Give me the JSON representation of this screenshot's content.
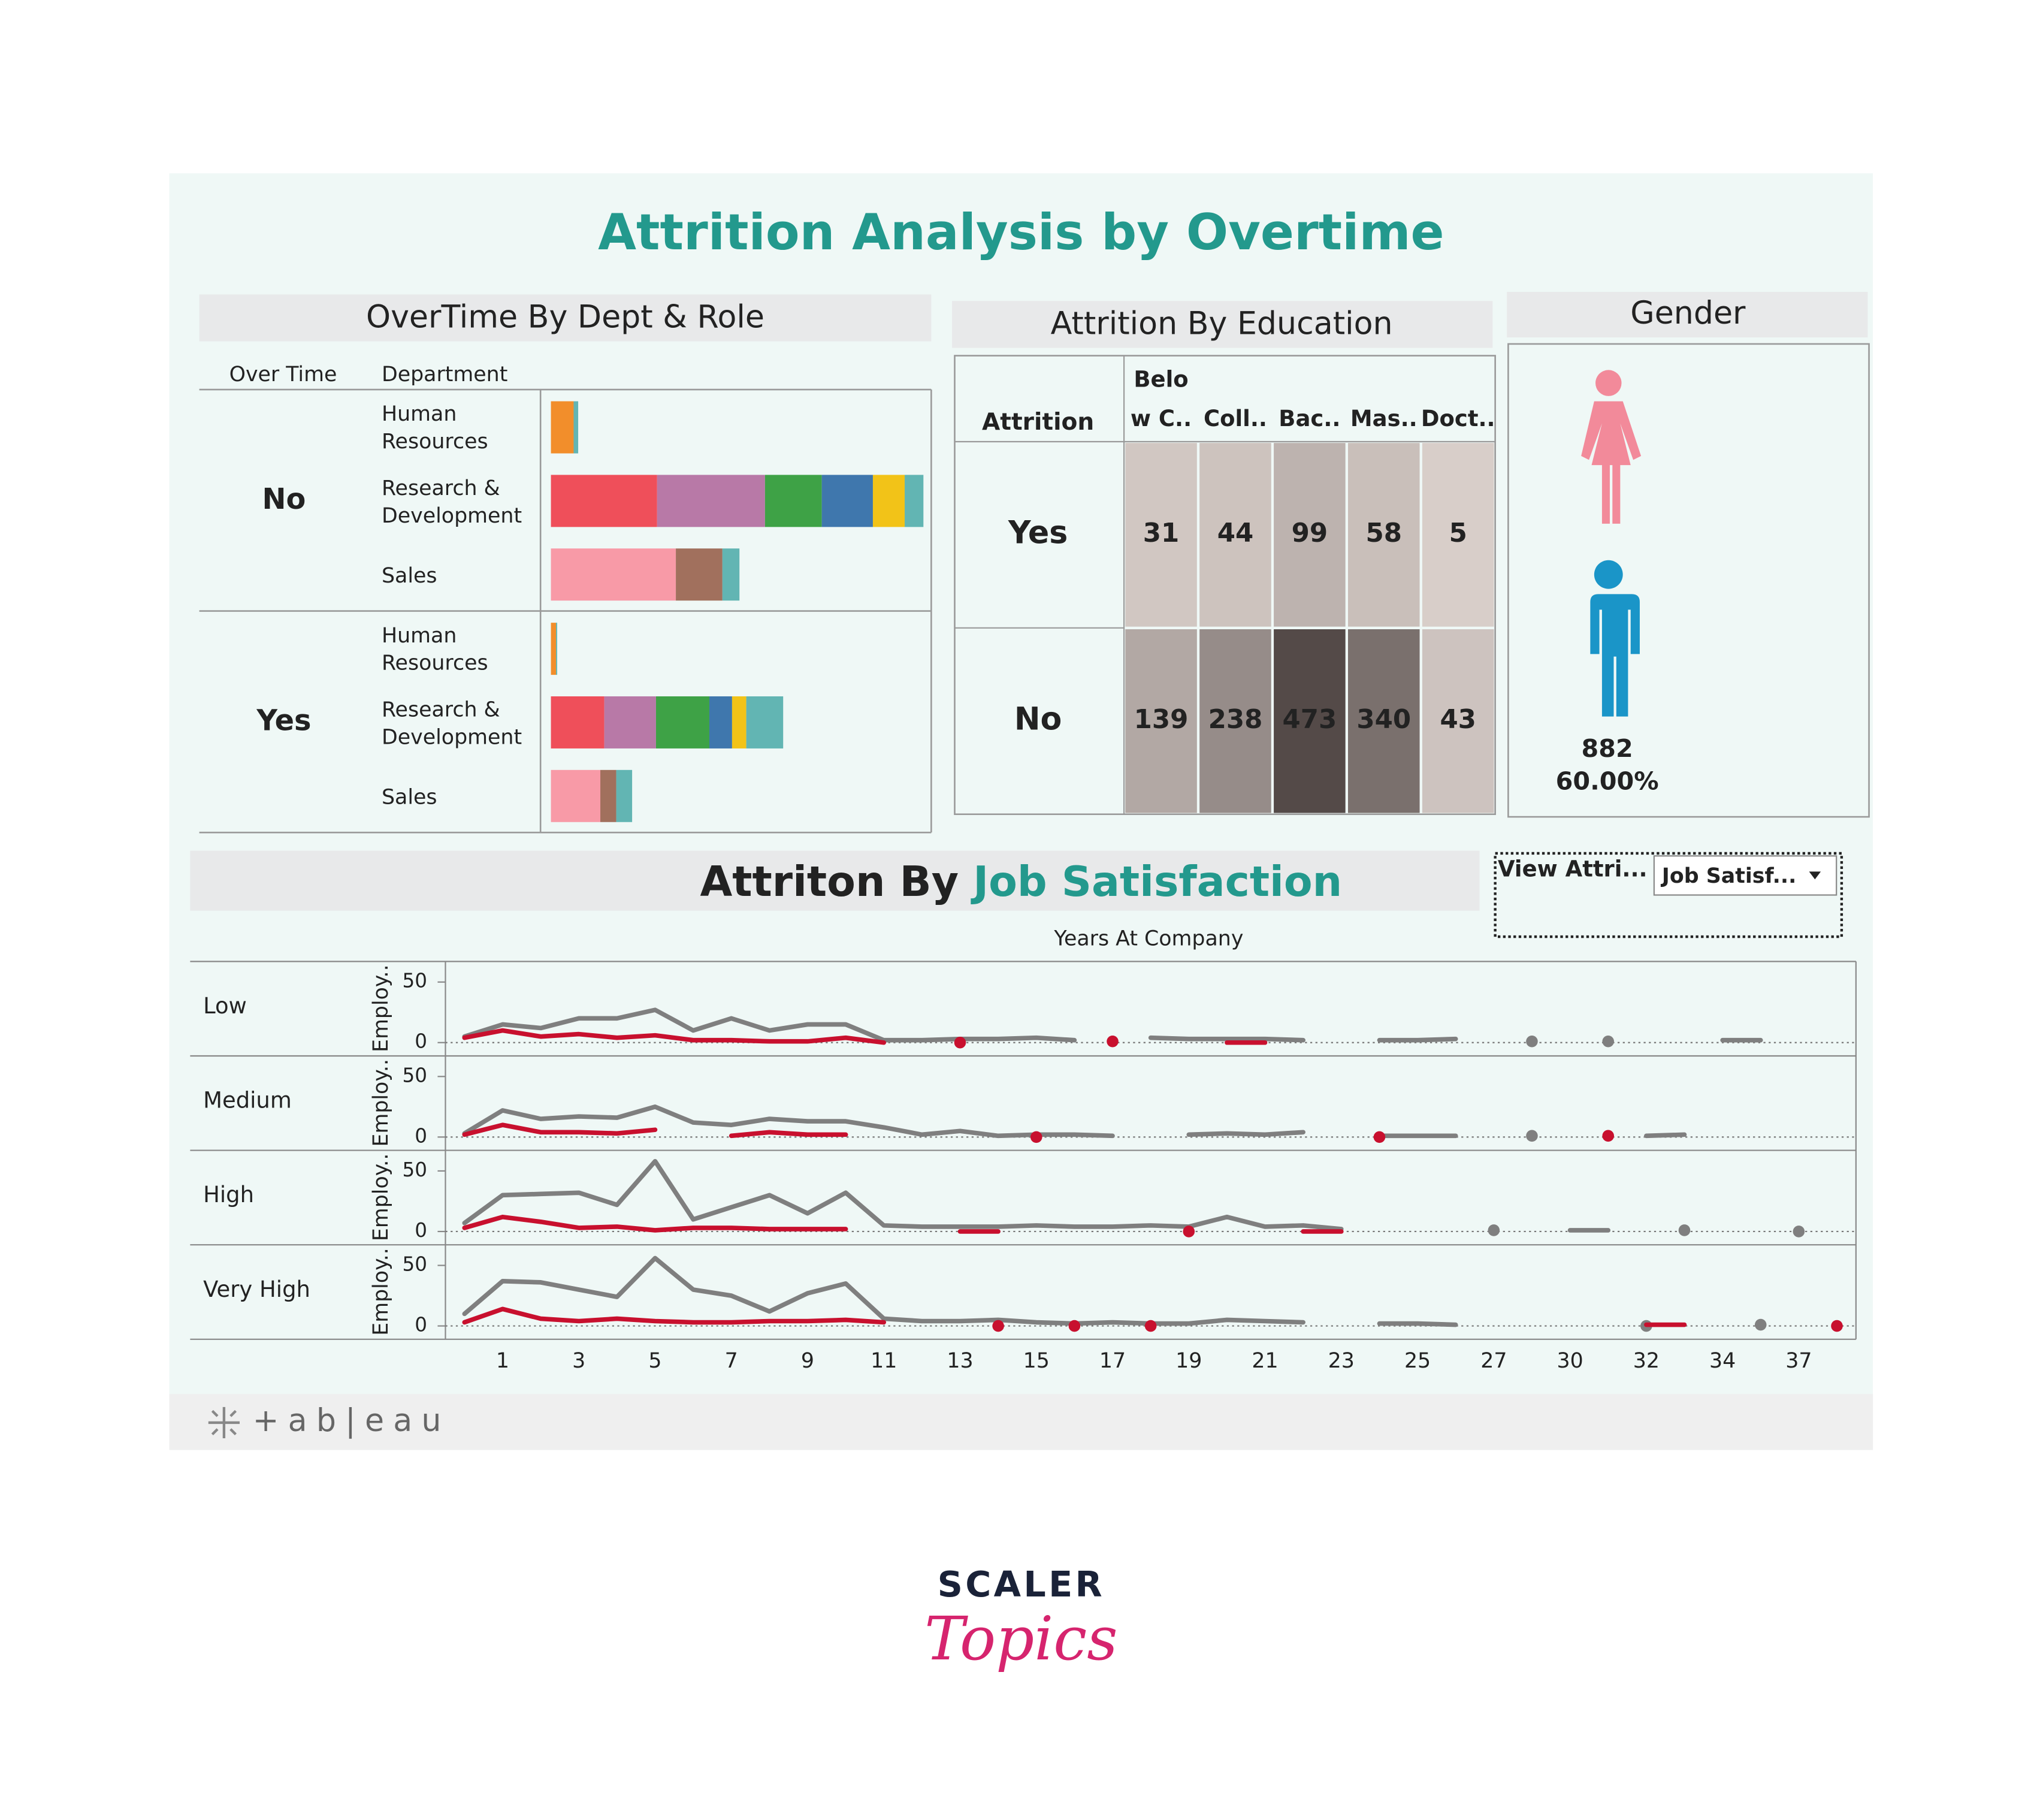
{
  "title": "Attrition Analysis by Overtime",
  "chart_data": [
    {
      "type": "bar",
      "title": "OverTime By Dept & Role",
      "row_headers": [
        "Over Time",
        "Department"
      ],
      "groups": [
        "No",
        "Yes"
      ],
      "categories": [
        "Human Resources",
        "Research & Development",
        "Sales",
        "Human Resources",
        "Research & Development",
        "Sales"
      ],
      "series": [
        {
          "color": "#f28e2b",
          "values": [
            40,
            null,
            null,
            9,
            null,
            null
          ]
        },
        {
          "color": "#ef4f5a",
          "values": [
            null,
            187,
            null,
            null,
            94,
            null
          ]
        },
        {
          "color": "#b879a7",
          "values": [
            null,
            190,
            null,
            null,
            91,
            null
          ]
        },
        {
          "color": "#3ea246",
          "values": [
            null,
            100,
            null,
            null,
            94,
            null
          ]
        },
        {
          "color": "#3f77ad",
          "values": [
            null,
            90,
            null,
            null,
            40,
            null
          ]
        },
        {
          "color": "#f2c318",
          "values": [
            null,
            56,
            null,
            null,
            25,
            null
          ]
        },
        {
          "color": "#f89aa7",
          "values": [
            null,
            null,
            220,
            null,
            null,
            87
          ]
        },
        {
          "color": "#a1705d",
          "values": [
            null,
            null,
            82,
            null,
            null,
            28
          ]
        },
        {
          "color": "#62b5b3",
          "values": [
            8,
            33,
            30,
            2,
            65,
            28
          ]
        }
      ]
    },
    {
      "type": "heatmap",
      "title": "Attrition By Education",
      "row_header": "Attrition",
      "rows": [
        "Yes",
        "No"
      ],
      "columns": [
        "Belo w C..",
        "Coll..",
        "Bac..",
        "Mas..",
        "Doct.."
      ],
      "values": [
        [
          31,
          44,
          99,
          58,
          5
        ],
        [
          139,
          238,
          473,
          340,
          43
        ]
      ],
      "colors": [
        "#d8cec9",
        "#544a48"
      ]
    },
    {
      "type": "pictograph",
      "title": "Gender",
      "counts": [
        882
      ],
      "values": [
        60
      ],
      "value_labels": [
        "60.00%"
      ]
    },
    {
      "type": "line",
      "title": "Attriton By",
      "title_highlight": "Job Satisfaction",
      "x_label": "Years At Company",
      "y_label": "Employ..",
      "categories": [
        null,
        1,
        null,
        3,
        null,
        5,
        null,
        7,
        null,
        9,
        null,
        11,
        null,
        13,
        null,
        15,
        null,
        17,
        null,
        19,
        null,
        21,
        null,
        23,
        null,
        25,
        null,
        27,
        null,
        30,
        null,
        32,
        null,
        34,
        null,
        37,
        null
      ],
      "ylim": [
        -11,
        67
      ],
      "yticks": [
        0,
        50
      ],
      "facets": [
        {
          "name": "Low",
          "series": [
            {
              "color": "#7f7f7f",
              "values": [
                5,
                15,
                12,
                20,
                20,
                27,
                10,
                20,
                10,
                15,
                15,
                2,
                2,
                3,
                3,
                4,
                2,
                null,
                4,
                3,
                3,
                3,
                2,
                null,
                2,
                2,
                3,
                null,
                1,
                null,
                1,
                null,
                null,
                2,
                2,
                null,
                null
              ]
            },
            {
              "color": "#c8102e",
              "values": [
                4,
                10,
                5,
                7,
                4,
                6,
                2,
                2,
                1,
                1,
                4,
                0,
                null,
                0,
                null,
                null,
                null,
                1,
                null,
                null,
                0,
                0,
                null,
                null,
                null,
                null,
                null,
                null,
                null,
                null,
                null,
                null,
                null,
                null,
                null,
                null,
                null
              ]
            }
          ]
        },
        {
          "name": "Medium",
          "series": [
            {
              "color": "#7f7f7f",
              "values": [
                3,
                22,
                15,
                17,
                16,
                25,
                12,
                10,
                15,
                13,
                13,
                8,
                2,
                5,
                1,
                2,
                2,
                1,
                null,
                2,
                3,
                2,
                4,
                null,
                1,
                1,
                1,
                null,
                1,
                null,
                null,
                1,
                2,
                null,
                null,
                null,
                null
              ]
            },
            {
              "color": "#c8102e",
              "values": [
                2,
                10,
                4,
                4,
                3,
                6,
                null,
                1,
                4,
                2,
                2,
                null,
                null,
                null,
                null,
                0,
                null,
                null,
                null,
                null,
                null,
                null,
                null,
                null,
                0,
                null,
                null,
                null,
                null,
                null,
                1,
                null,
                null,
                null,
                null,
                null,
                null
              ]
            }
          ]
        },
        {
          "name": "High",
          "series": [
            {
              "color": "#7f7f7f",
              "values": [
                7,
                30,
                31,
                32,
                22,
                58,
                10,
                20,
                30,
                15,
                32,
                5,
                4,
                4,
                4,
                5,
                4,
                4,
                5,
                4,
                12,
                4,
                5,
                2,
                null,
                null,
                null,
                1,
                null,
                1,
                1,
                null,
                1,
                null,
                null,
                0,
                null
              ]
            },
            {
              "color": "#c8102e",
              "values": [
                3,
                12,
                8,
                3,
                4,
                1,
                3,
                3,
                2,
                2,
                2,
                null,
                null,
                0,
                0,
                null,
                null,
                null,
                null,
                0,
                null,
                null,
                0,
                0,
                null,
                null,
                null,
                null,
                null,
                null,
                null,
                null,
                null,
                null,
                null,
                null,
                null
              ]
            }
          ]
        },
        {
          "name": "Very High",
          "series": [
            {
              "color": "#7f7f7f",
              "values": [
                10,
                37,
                36,
                30,
                24,
                56,
                30,
                25,
                12,
                27,
                35,
                6,
                4,
                4,
                5,
                3,
                2,
                3,
                2,
                2,
                5,
                4,
                3,
                null,
                2,
                2,
                1,
                null,
                null,
                null,
                null,
                0,
                null,
                null,
                1,
                null,
                null
              ]
            },
            {
              "color": "#c8102e",
              "values": [
                3,
                14,
                6,
                4,
                6,
                4,
                3,
                3,
                4,
                4,
                5,
                3,
                null,
                null,
                0,
                null,
                0,
                null,
                0,
                null,
                null,
                null,
                null,
                null,
                null,
                null,
                null,
                null,
                null,
                null,
                null,
                1,
                1,
                null,
                null,
                null,
                0
              ]
            }
          ]
        }
      ]
    }
  ],
  "filter": {
    "label": "View Attri...",
    "selected": "Job Satisf..."
  },
  "footer": {
    "logo": "+ab|eau"
  },
  "branding": {
    "name": "SCALER",
    "tagline": "Topics"
  }
}
